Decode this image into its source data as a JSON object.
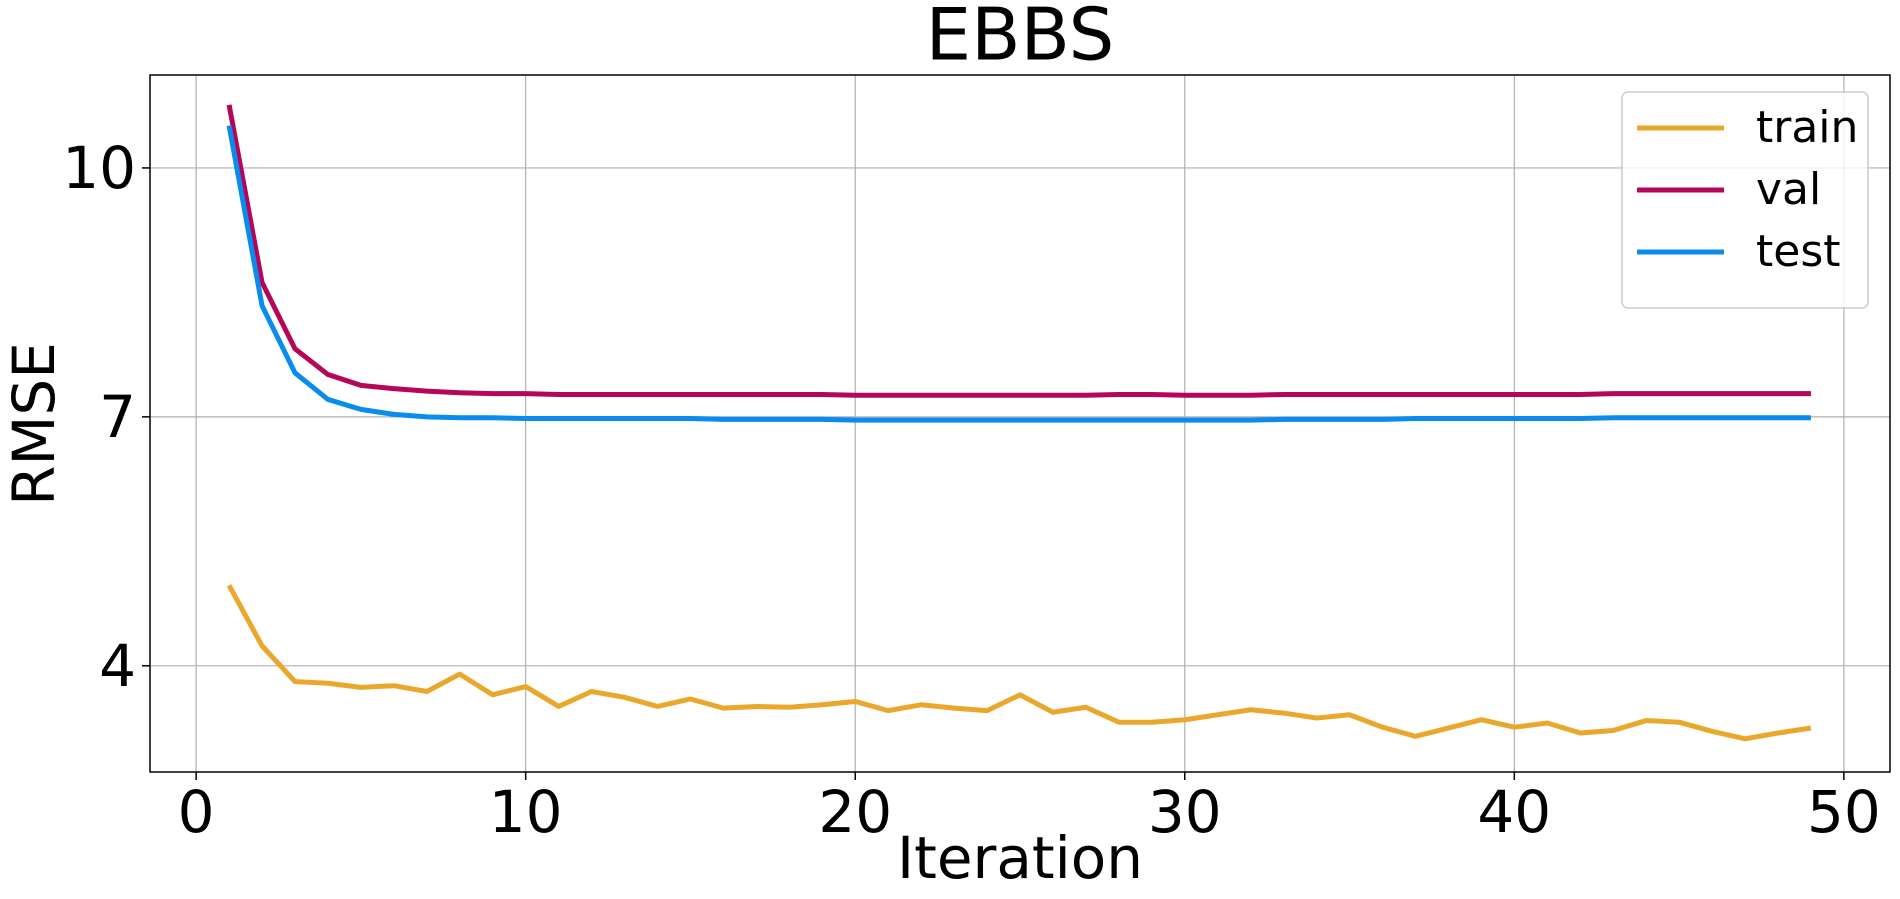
{
  "chart_data": {
    "type": "line",
    "title": "EBBS",
    "x_label": "Iteration",
    "y_label": "RMSE",
    "x": [
      1,
      2,
      3,
      4,
      5,
      6,
      7,
      8,
      9,
      10,
      11,
      12,
      13,
      14,
      15,
      16,
      17,
      18,
      19,
      20,
      21,
      22,
      23,
      24,
      25,
      26,
      27,
      28,
      29,
      30,
      31,
      32,
      33,
      34,
      35,
      36,
      37,
      38,
      39,
      40,
      41,
      42,
      43,
      44,
      45,
      46,
      47,
      48,
      49
    ],
    "series": [
      {
        "name": "train",
        "color": "#e9a82b",
        "values": [
          4.97,
          4.24,
          3.81,
          3.79,
          3.74,
          3.76,
          3.69,
          3.9,
          3.65,
          3.75,
          3.51,
          3.69,
          3.62,
          3.51,
          3.6,
          3.49,
          3.51,
          3.5,
          3.53,
          3.57,
          3.46,
          3.53,
          3.49,
          3.46,
          3.65,
          3.44,
          3.5,
          3.32,
          3.32,
          3.35,
          3.41,
          3.47,
          3.43,
          3.37,
          3.41,
          3.26,
          3.15,
          3.25,
          3.35,
          3.26,
          3.31,
          3.19,
          3.22,
          3.34,
          3.32,
          3.21,
          3.12,
          3.19,
          3.25
        ]
      },
      {
        "name": "val",
        "color": "#b5065a",
        "values": [
          10.76,
          8.62,
          7.82,
          7.51,
          7.38,
          7.34,
          7.31,
          7.29,
          7.28,
          7.28,
          7.27,
          7.27,
          7.27,
          7.27,
          7.27,
          7.27,
          7.27,
          7.27,
          7.27,
          7.26,
          7.26,
          7.26,
          7.26,
          7.26,
          7.26,
          7.26,
          7.26,
          7.27,
          7.27,
          7.26,
          7.26,
          7.26,
          7.27,
          7.27,
          7.27,
          7.27,
          7.27,
          7.27,
          7.27,
          7.27,
          7.27,
          7.27,
          7.28,
          7.28,
          7.28,
          7.28,
          7.28,
          7.28,
          7.28
        ]
      },
      {
        "name": "test",
        "color": "#0a8ced",
        "values": [
          10.51,
          8.34,
          7.53,
          7.21,
          7.09,
          7.03,
          7.0,
          6.99,
          6.99,
          6.98,
          6.98,
          6.98,
          6.98,
          6.98,
          6.98,
          6.97,
          6.97,
          6.97,
          6.97,
          6.96,
          6.96,
          6.96,
          6.96,
          6.96,
          6.96,
          6.96,
          6.96,
          6.96,
          6.96,
          6.96,
          6.96,
          6.96,
          6.97,
          6.97,
          6.97,
          6.97,
          6.98,
          6.98,
          6.98,
          6.98,
          6.98,
          6.98,
          6.99,
          6.99,
          6.99,
          6.99,
          6.99,
          6.99,
          6.99
        ]
      }
    ],
    "xlim": [
      -1.4,
      51.4
    ],
    "ylim": [
      2.72,
      11.12
    ],
    "xticks": [
      0,
      10,
      20,
      30,
      40,
      50
    ],
    "yticks": [
      4,
      7,
      10
    ],
    "grid": true,
    "legend": "upper right"
  }
}
